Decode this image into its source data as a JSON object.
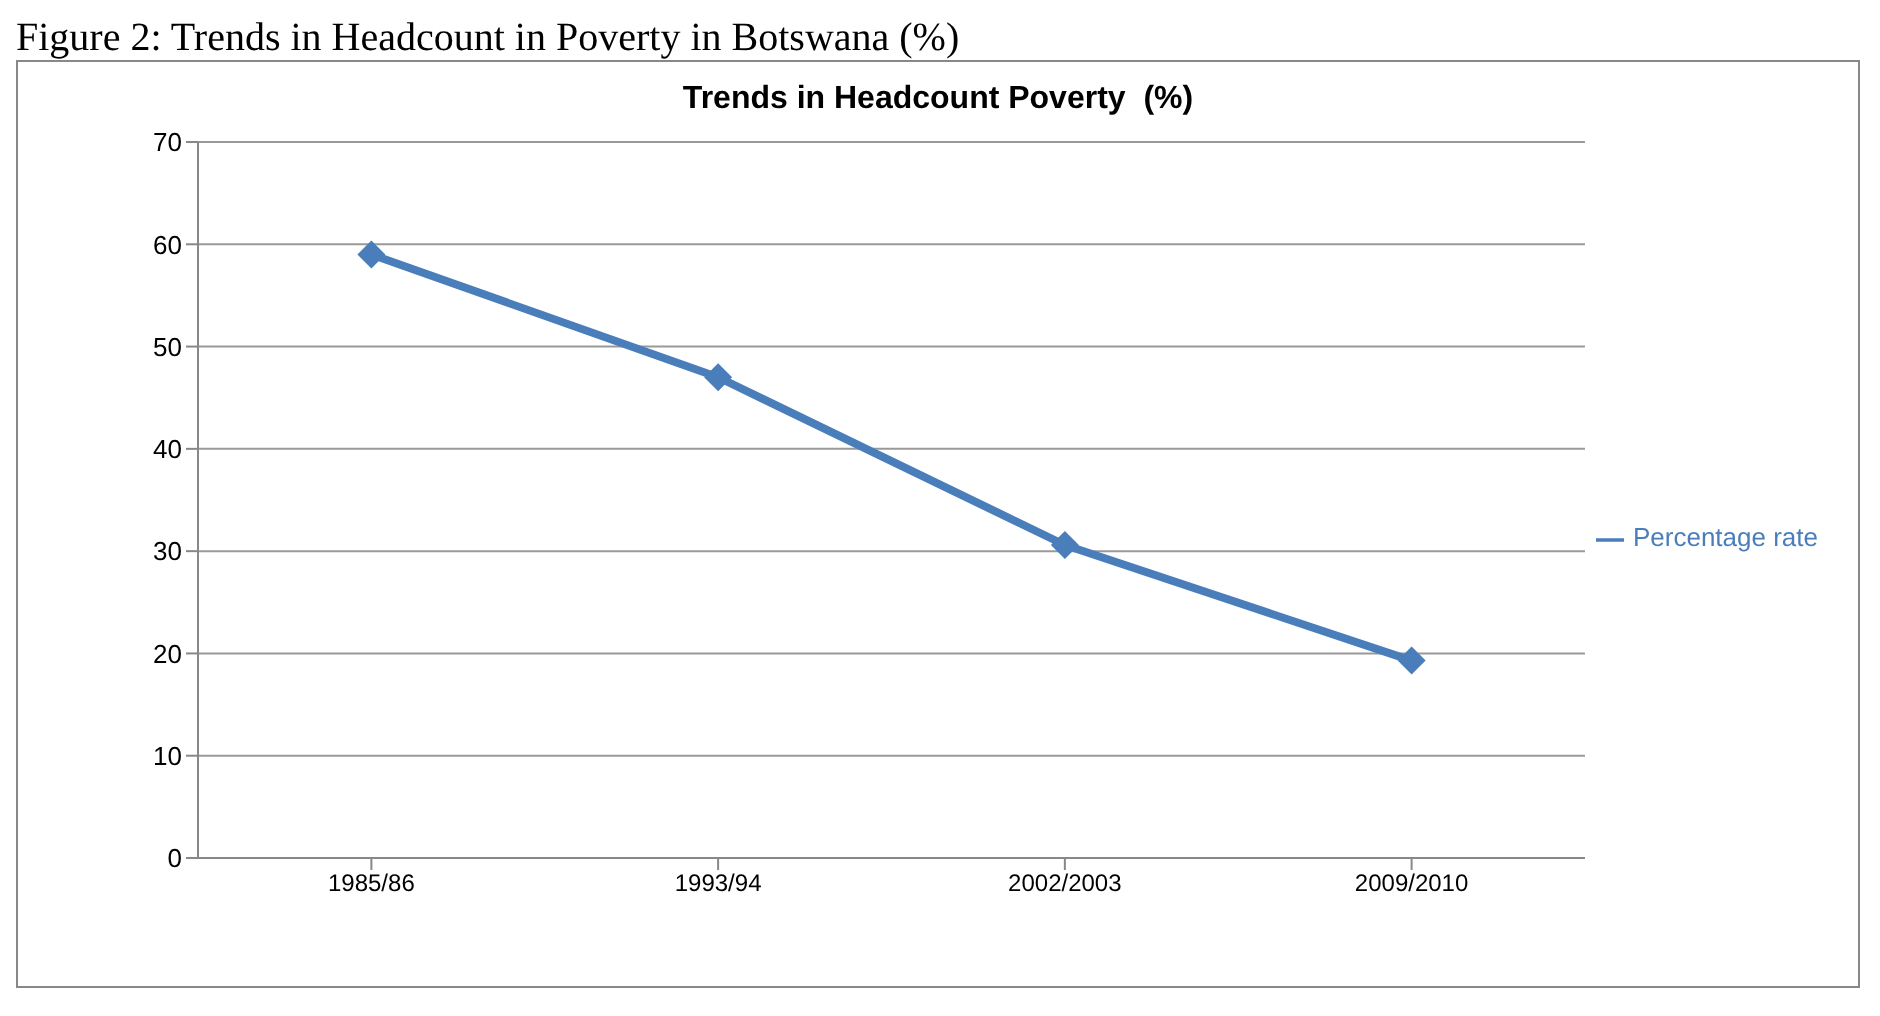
{
  "chart_data": {
    "type": "line",
    "title": "Trends in Headcount Poverty  (%)",
    "annotations": [
      "Figure 2: Trends in Headcount in Poverty in Botswana (%)"
    ],
    "categories": [
      "1985/86",
      "1993/94",
      "2002/2003",
      "2009/2010"
    ],
    "series": [
      {
        "name": "Percentage rate",
        "color": "#4a7ebb",
        "values": [
          59,
          47,
          30.6,
          19.3
        ]
      }
    ],
    "ylim": [
      0,
      70
    ],
    "yticks": [
      0,
      10,
      20,
      30,
      40,
      50,
      60,
      70
    ],
    "grid": "y",
    "legend": "right",
    "marker": "diamond",
    "line_style": "solid"
  }
}
